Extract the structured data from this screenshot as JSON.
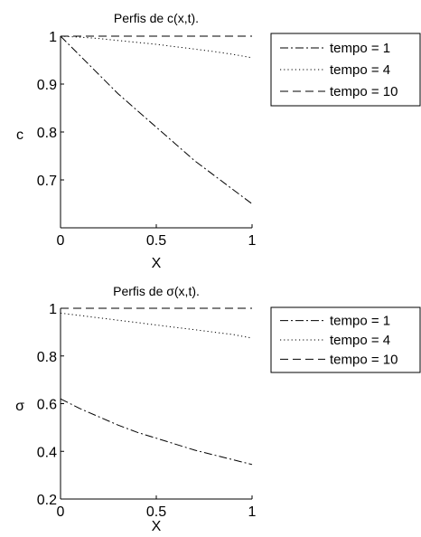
{
  "chart_data": [
    {
      "type": "line",
      "title": "Perfis de c(x,t).",
      "xlabel": "X",
      "ylabel": "c",
      "xlim": [
        0,
        1
      ],
      "ylim": [
        0.6,
        1.0
      ],
      "xticks": [
        "0",
        "0.5",
        "1"
      ],
      "yticks": [
        "0.7",
        "0.8",
        "0.9",
        "1"
      ],
      "grid": false,
      "legend_position": "outside-right",
      "x": [
        0,
        0.1,
        0.2,
        0.3,
        0.4,
        0.5,
        0.6,
        0.7,
        0.8,
        0.9,
        1.0
      ],
      "series": [
        {
          "name": "tempo = 1",
          "style": "dashdot",
          "values": [
            1.0,
            0.96,
            0.92,
            0.88,
            0.845,
            0.81,
            0.775,
            0.74,
            0.71,
            0.68,
            0.65
          ]
        },
        {
          "name": "tempo = 4",
          "style": "dotted",
          "values": [
            1.0,
            0.998,
            0.995,
            0.991,
            0.987,
            0.983,
            0.978,
            0.973,
            0.968,
            0.962,
            0.955
          ]
        },
        {
          "name": "tempo = 10",
          "style": "dashed",
          "values": [
            1.0,
            1.0,
            1.0,
            1.0,
            1.0,
            1.0,
            1.0,
            1.0,
            1.0,
            1.0,
            1.0
          ]
        }
      ]
    },
    {
      "type": "line",
      "title": "Perfis de σ(x,t).",
      "xlabel": "X",
      "ylabel": "σ",
      "xlim": [
        0,
        1
      ],
      "ylim": [
        0.2,
        1.0
      ],
      "xticks": [
        "0",
        "0.5",
        "1"
      ],
      "yticks": [
        "0.2",
        "0.4",
        "0.6",
        "0.8",
        "1"
      ],
      "grid": false,
      "legend_position": "outside-right",
      "x": [
        0,
        0.1,
        0.2,
        0.3,
        0.4,
        0.5,
        0.6,
        0.7,
        0.8,
        0.9,
        1.0
      ],
      "series": [
        {
          "name": "tempo = 1",
          "style": "dashdot",
          "values": [
            0.62,
            0.58,
            0.545,
            0.51,
            0.48,
            0.455,
            0.43,
            0.405,
            0.385,
            0.365,
            0.345
          ]
        },
        {
          "name": "tempo = 4",
          "style": "dotted",
          "values": [
            0.98,
            0.97,
            0.96,
            0.95,
            0.94,
            0.93,
            0.92,
            0.91,
            0.9,
            0.89,
            0.875
          ]
        },
        {
          "name": "tempo = 10",
          "style": "dashed",
          "values": [
            1.0,
            1.0,
            1.0,
            1.0,
            1.0,
            1.0,
            1.0,
            1.0,
            1.0,
            1.0,
            1.0
          ]
        }
      ]
    }
  ]
}
